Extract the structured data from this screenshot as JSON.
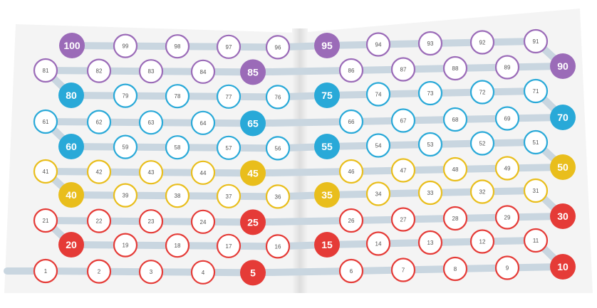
{
  "colors": {
    "purple": "#9B6BB8",
    "cyan": "#29A9D8",
    "yellow": "#E9BE1C",
    "red": "#E53B37",
    "path": "#C9D6E0",
    "page": "#F4F4F4",
    "number_text": "#555555"
  },
  "rows": [
    [
      100,
      99,
      98,
      97,
      96,
      95,
      94,
      93,
      92,
      91
    ],
    [
      81,
      82,
      83,
      84,
      85,
      86,
      87,
      88,
      89,
      90
    ],
    [
      80,
      79,
      78,
      77,
      76,
      75,
      74,
      73,
      72,
      71
    ],
    [
      61,
      62,
      63,
      64,
      65,
      66,
      67,
      68,
      69,
      70
    ],
    [
      60,
      59,
      58,
      57,
      56,
      55,
      54,
      53,
      52,
      51
    ],
    [
      41,
      42,
      43,
      44,
      45,
      46,
      47,
      48,
      49,
      50
    ],
    [
      40,
      39,
      38,
      37,
      36,
      35,
      34,
      33,
      32,
      31
    ],
    [
      21,
      22,
      23,
      24,
      25,
      26,
      27,
      28,
      29,
      30
    ],
    [
      20,
      19,
      18,
      17,
      16,
      15,
      14,
      13,
      12,
      11
    ],
    [
      1,
      2,
      3,
      4,
      5,
      6,
      7,
      8,
      9,
      10
    ]
  ]
}
